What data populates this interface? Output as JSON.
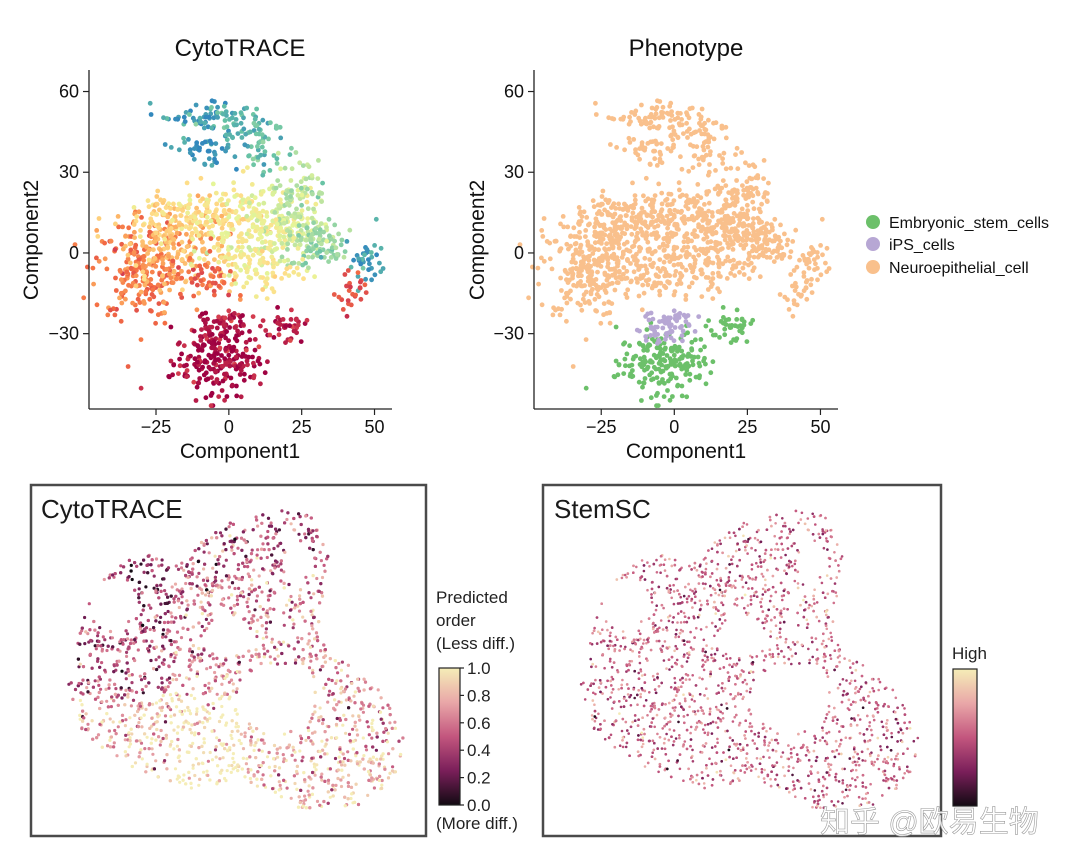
{
  "chart_data": [
    {
      "type": "scatter",
      "title": "CytoTRACE",
      "xlabel": "Component1",
      "ylabel": "Component2",
      "xlim": [
        -48,
        56
      ],
      "ylim": [
        -58,
        68
      ],
      "xticks": [
        "−25",
        "0",
        "25",
        "50"
      ],
      "xtick_values": [
        -25,
        0,
        25,
        50
      ],
      "yticks": [
        "60",
        "30",
        "0",
        "−30"
      ],
      "ytick_values": [
        60,
        30,
        0,
        -30
      ],
      "color_mode": "continuous",
      "colormap": "Spectral"
    },
    {
      "type": "scatter",
      "title": "Phenotype",
      "xlabel": "Component1",
      "ylabel": "Component2",
      "xlim": [
        -48,
        56
      ],
      "ylim": [
        -58,
        68
      ],
      "xticks": [
        "−25",
        "0",
        "25",
        "50"
      ],
      "xtick_values": [
        -25,
        0,
        25,
        50
      ],
      "yticks": [
        "60",
        "30",
        "0",
        "−30"
      ],
      "ytick_values": [
        60,
        30,
        0,
        -30
      ],
      "legend": [
        {
          "label": "Embryonic_stem_cells",
          "color": "#6cc06a"
        },
        {
          "label": "iPS_cells",
          "color": "#b7a7d4"
        },
        {
          "label": "Neuroepithelial_cell",
          "color": "#f9c08c"
        }
      ],
      "legend_position": "right"
    },
    {
      "type": "scatter",
      "title": "CytoTRACE",
      "colorbar": {
        "title_lines": [
          "Predicted",
          "order",
          "(Less diff.)"
        ],
        "ticks": [
          "1.0",
          "0.8",
          "0.6",
          "0.4",
          "0.2",
          "0.0"
        ],
        "tick_values": [
          1.0,
          0.8,
          0.6,
          0.4,
          0.2,
          0.0
        ],
        "bottom_label": "(More diff.)",
        "colors": [
          "#f5edb7",
          "#e9a7a8",
          "#c3567e",
          "#7a1f5a",
          "#120a12"
        ]
      }
    },
    {
      "type": "scatter",
      "title": "StemSC",
      "colorbar": {
        "top_label": "High",
        "colors": [
          "#f5edb7",
          "#e9a7a8",
          "#c3567e",
          "#7a1f5a",
          "#120a12"
        ]
      }
    }
  ],
  "watermark": "知乎 @欧易生物"
}
